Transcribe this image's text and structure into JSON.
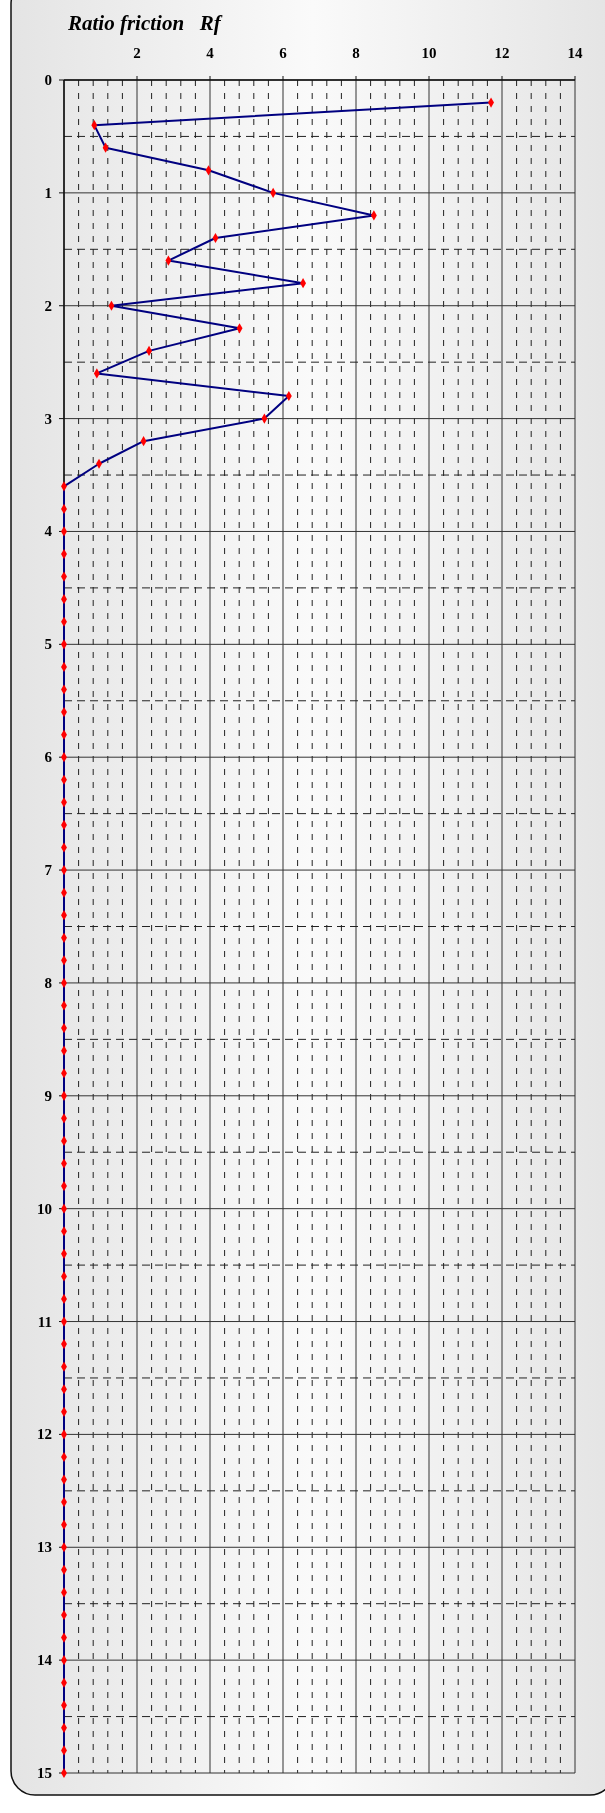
{
  "chart_data": {
    "type": "line",
    "title": "Ratio friction   Rf",
    "series": [
      {
        "color": "#000080",
        "x": [
          11.7,
          0.83,
          1.14,
          3.96,
          5.73,
          8.49,
          4.15,
          2.86,
          6.55,
          1.3,
          4.81,
          2.33,
          0.9,
          6.16,
          5.49,
          2.18,
          0.96,
          0,
          0,
          0,
          0,
          0,
          0,
          0,
          0,
          0,
          0,
          0,
          0,
          0,
          0,
          0,
          0,
          0,
          0,
          0,
          0,
          0,
          0,
          0,
          0,
          0,
          0,
          0,
          0,
          0,
          0,
          0,
          0,
          0,
          0,
          0,
          0,
          0,
          0,
          0,
          0,
          0,
          0,
          0,
          0,
          0,
          0,
          0,
          0,
          0,
          0,
          0,
          0,
          0,
          0,
          0,
          0,
          0,
          0
        ],
        "values": [
          0.2,
          0.4,
          0.6,
          0.8,
          1.0,
          1.2,
          1.4,
          1.6,
          1.8,
          2.0,
          2.2,
          2.4,
          2.6,
          2.8,
          3.0,
          3.2,
          3.4,
          3.6,
          3.8,
          4.0,
          4.2,
          4.4,
          4.6,
          4.8,
          5.0,
          5.2,
          5.4,
          5.6,
          5.8,
          6.0,
          6.2,
          6.4,
          6.6,
          6.8,
          7.0,
          7.2,
          7.4,
          7.6,
          7.8,
          8.0,
          8.2,
          8.4,
          8.6,
          8.8,
          9.0,
          9.2,
          9.4,
          9.6,
          9.8,
          10.0,
          10.2,
          10.4,
          10.6,
          10.8,
          11.0,
          11.2,
          11.4,
          11.6,
          11.8,
          12.0,
          12.2,
          12.4,
          12.6,
          12.8,
          13.0,
          13.2,
          13.4,
          13.6,
          13.8,
          14.0,
          14.2,
          14.4,
          14.6,
          14.8,
          15.0
        ]
      }
    ],
    "xlim": [
      0,
      14
    ],
    "xticks": [
      2,
      4,
      6,
      8,
      10,
      12,
      14
    ],
    "ylim": [
      15,
      0
    ],
    "yticks": [
      0,
      1,
      2,
      3,
      4,
      5,
      6,
      7,
      8,
      9,
      10,
      11,
      12,
      13,
      14,
      15
    ],
    "grid": true,
    "marker": "diamond",
    "line_style": "solid"
  }
}
